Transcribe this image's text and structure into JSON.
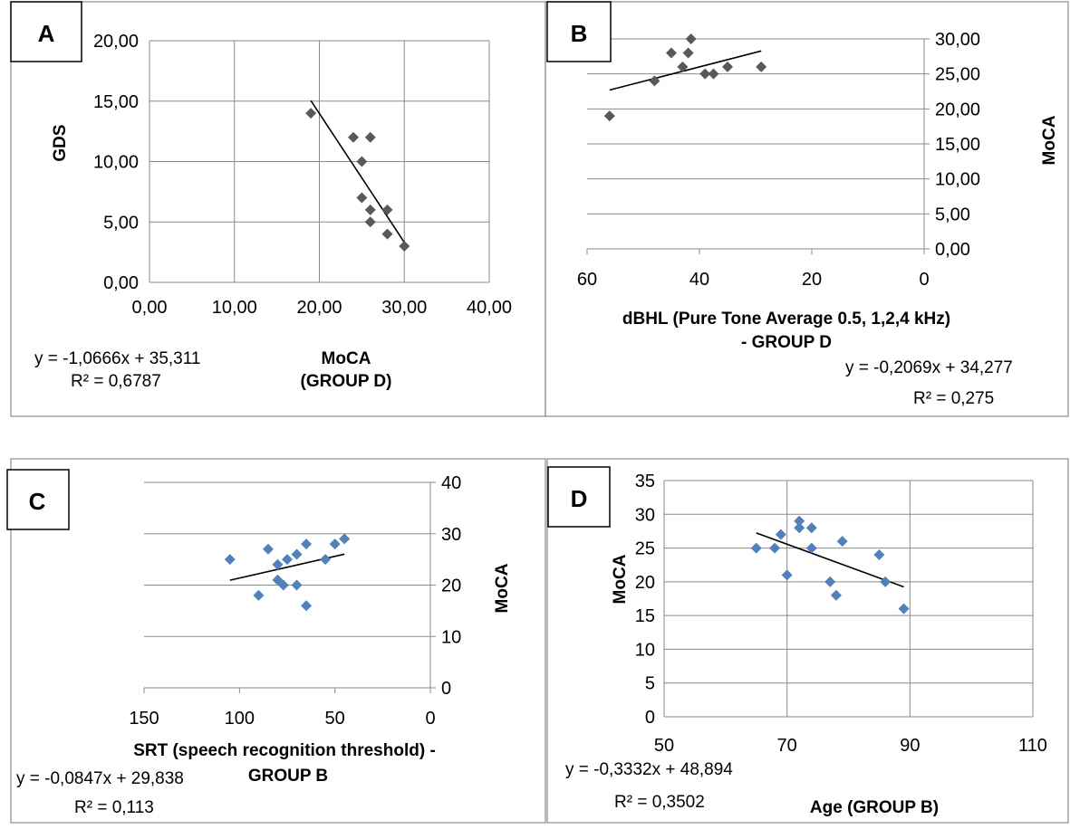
{
  "chart_data": [
    {
      "type": "scatter",
      "panel_label": "A",
      "xlabel": [
        "MoCA",
        "(GROUP D)"
      ],
      "ylabel": "GDS",
      "xlim": [
        0,
        40
      ],
      "ylim": [
        0,
        20
      ],
      "x_ticks": [
        "0,00",
        "10,00",
        "20,00",
        "30,00",
        "40,00"
      ],
      "y_ticks": [
        "0,00",
        "5,00",
        "10,00",
        "15,00",
        "20,00"
      ],
      "grid": true,
      "marker_color": "#595959",
      "points": [
        {
          "x": 19,
          "y": 14
        },
        {
          "x": 24,
          "y": 12
        },
        {
          "x": 26,
          "y": 12
        },
        {
          "x": 25,
          "y": 10
        },
        {
          "x": 25,
          "y": 7
        },
        {
          "x": 26,
          "y": 6
        },
        {
          "x": 28,
          "y": 6
        },
        {
          "x": 26,
          "y": 5
        },
        {
          "x": 28,
          "y": 4
        },
        {
          "x": 30,
          "y": 3
        }
      ],
      "trendline": {
        "slope": -1.0666,
        "intercept": 35.311,
        "x_range": [
          19,
          30
        ]
      },
      "equation": [
        "y = -1,0666x + 35,311",
        "R² = 0,6787"
      ]
    },
    {
      "type": "scatter",
      "panel_label": "B",
      "xlabel": [
        "dBHL (Pure Tone Average 0.5, 1,2,4 kHz)",
        "- GROUP D"
      ],
      "ylabel": "MoCA",
      "xlim": [
        60,
        0
      ],
      "ylim": [
        0,
        30
      ],
      "x_ticks": [
        "60",
        "40",
        "20",
        "0"
      ],
      "y_ticks": [
        "0,00",
        "5,00",
        "10,00",
        "15,00",
        "20,00",
        "25,00",
        "30,00"
      ],
      "grid": true,
      "marker_color": "#595959",
      "points": [
        {
          "x": 56,
          "y": 19
        },
        {
          "x": 48,
          "y": 24
        },
        {
          "x": 45,
          "y": 28
        },
        {
          "x": 43,
          "y": 26
        },
        {
          "x": 42,
          "y": 28
        },
        {
          "x": 41.5,
          "y": 30
        },
        {
          "x": 39,
          "y": 25
        },
        {
          "x": 37.5,
          "y": 25
        },
        {
          "x": 35,
          "y": 26
        },
        {
          "x": 29,
          "y": 26
        }
      ],
      "trendline": {
        "slope": -0.2069,
        "intercept": 34.277,
        "x_range": [
          56,
          29
        ]
      },
      "equation": [
        "y = -0,2069x + 34,277",
        "R² = 0,275"
      ]
    },
    {
      "type": "scatter",
      "panel_label": "C",
      "xlabel": [
        "SRT (speech recognition threshold) -",
        "GROUP B"
      ],
      "ylabel": "MoCA",
      "xlim": [
        150,
        0
      ],
      "ylim": [
        0,
        40
      ],
      "x_ticks": [
        "150",
        "100",
        "50",
        "0"
      ],
      "y_ticks": [
        "0",
        "10",
        "20",
        "30",
        "40"
      ],
      "grid": true,
      "marker_color": "#4f81bd",
      "points": [
        {
          "x": 105,
          "y": 25
        },
        {
          "x": 90,
          "y": 18
        },
        {
          "x": 85,
          "y": 27
        },
        {
          "x": 80,
          "y": 24
        },
        {
          "x": 80,
          "y": 21
        },
        {
          "x": 77,
          "y": 20
        },
        {
          "x": 75,
          "y": 25
        },
        {
          "x": 70,
          "y": 26
        },
        {
          "x": 70,
          "y": 20
        },
        {
          "x": 65,
          "y": 28
        },
        {
          "x": 65,
          "y": 16
        },
        {
          "x": 55,
          "y": 25
        },
        {
          "x": 50,
          "y": 28
        },
        {
          "x": 45,
          "y": 29
        }
      ],
      "trendline": {
        "slope": -0.0847,
        "intercept": 29.838,
        "x_range": [
          105,
          45
        ]
      },
      "equation": [
        "y = -0,0847x + 29,838",
        "R² = 0,113"
      ]
    },
    {
      "type": "scatter",
      "panel_label": "D",
      "xlabel": [
        "Age (GROUP B)"
      ],
      "ylabel": "MoCA",
      "xlim": [
        50,
        110
      ],
      "ylim": [
        0,
        35
      ],
      "x_ticks": [
        "50",
        "70",
        "90",
        "110"
      ],
      "y_ticks": [
        "0",
        "5",
        "10",
        "15",
        "20",
        "25",
        "30",
        "35"
      ],
      "grid": true,
      "marker_color": "#4f81bd",
      "points": [
        {
          "x": 65,
          "y": 25
        },
        {
          "x": 68,
          "y": 25
        },
        {
          "x": 69,
          "y": 27
        },
        {
          "x": 70,
          "y": 21
        },
        {
          "x": 72,
          "y": 29
        },
        {
          "x": 72,
          "y": 28
        },
        {
          "x": 74,
          "y": 28
        },
        {
          "x": 74,
          "y": 25
        },
        {
          "x": 77,
          "y": 20
        },
        {
          "x": 78,
          "y": 18
        },
        {
          "x": 79,
          "y": 26
        },
        {
          "x": 85,
          "y": 24
        },
        {
          "x": 86,
          "y": 20
        },
        {
          "x": 89,
          "y": 16
        }
      ],
      "trendline": {
        "slope": -0.3332,
        "intercept": 48.894,
        "x_range": [
          65,
          89
        ]
      },
      "equation": [
        "y = -0,3332x + 48,894",
        "R² = 0,3502"
      ]
    }
  ]
}
